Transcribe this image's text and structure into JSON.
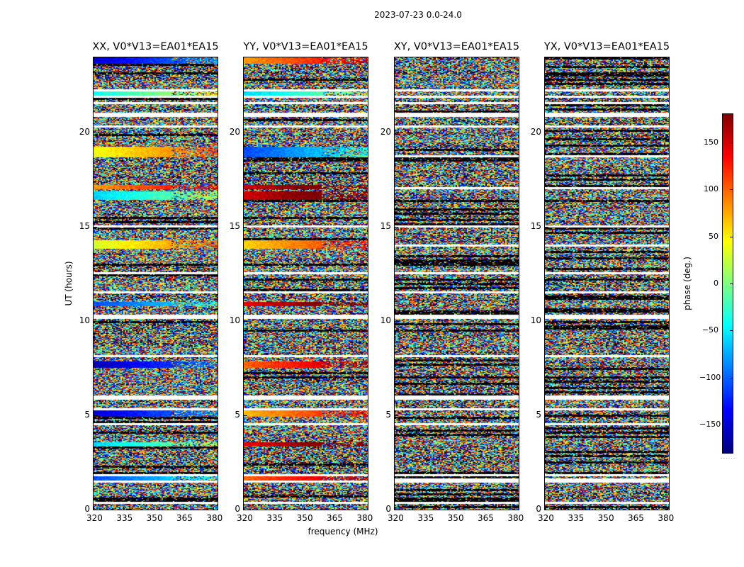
{
  "chart_data": {
    "type": "heatmap",
    "title": "2023-07-23 0.0-24.0",
    "xlabel": "frequency (MHz)",
    "ylabel": "UT (hours)",
    "xlim": [
      320,
      382
    ],
    "ylim": [
      0,
      24
    ],
    "xticks": [
      "320",
      "335",
      "350",
      "365",
      "380"
    ],
    "yticks": [
      "0",
      "5",
      "10",
      "15",
      "20"
    ],
    "colorbar": {
      "label": "phase (deg.)",
      "range": [
        -180,
        180
      ],
      "ticks": [
        "150",
        "100",
        "50",
        "0",
        "−50",
        "−100",
        "−150"
      ],
      "colormap": "jet"
    },
    "panels": [
      {
        "title": "XX, V0*V13=EA01*EA15"
      },
      {
        "title": "YY, V0*V13=EA01*EA15"
      },
      {
        "title": "XY, V0*V13=EA01*EA15"
      },
      {
        "title": "YX, V0*V13=EA01*EA15"
      }
    ],
    "flagged_gaps_ut_hours": [
      0.4,
      1.6,
      1.9,
      4.6,
      5.4,
      6.0,
      8.2,
      10.3,
      11.6,
      12.6,
      14.1,
      15.1,
      17.1,
      18.8,
      20.4,
      21.0,
      21.6,
      22.0,
      22.3
    ],
    "coherent_bands": [
      {
        "ut": [
          23.7,
          24.0
        ],
        "phase_by_panel": [
          -150,
          80,
          null,
          null
        ]
      },
      {
        "ut": [
          22.0,
          22.3
        ],
        "phase_by_panel": [
          -40,
          -60,
          null,
          null
        ]
      },
      {
        "ut": [
          18.8,
          19.3
        ],
        "phase_by_panel": [
          40,
          -110,
          null,
          null
        ]
      },
      {
        "ut": [
          17.1,
          17.3
        ],
        "phase_by_panel": [
          80,
          150,
          null,
          null
        ]
      },
      {
        "ut": [
          16.5,
          16.9
        ],
        "phase_by_panel": [
          -60,
          150,
          null,
          null
        ]
      },
      {
        "ut": [
          13.9,
          14.3
        ],
        "phase_by_panel": [
          30,
          60,
          null,
          null
        ]
      },
      {
        "ut": [
          10.9,
          11.1
        ],
        "phase_by_panel": [
          -110,
          140,
          null,
          null
        ]
      },
      {
        "ut": [
          7.6,
          7.9
        ],
        "phase_by_panel": [
          -160,
          100,
          null,
          null
        ]
      },
      {
        "ut": [
          5.0,
          5.3
        ],
        "phase_by_panel": [
          -150,
          70,
          null,
          null
        ]
      },
      {
        "ut": [
          3.4,
          3.6
        ],
        "phase_by_panel": [
          -60,
          140,
          null,
          null
        ]
      },
      {
        "ut": [
          1.6,
          1.8
        ],
        "phase_by_panel": [
          -110,
          100,
          null,
          null
        ]
      }
    ]
  }
}
